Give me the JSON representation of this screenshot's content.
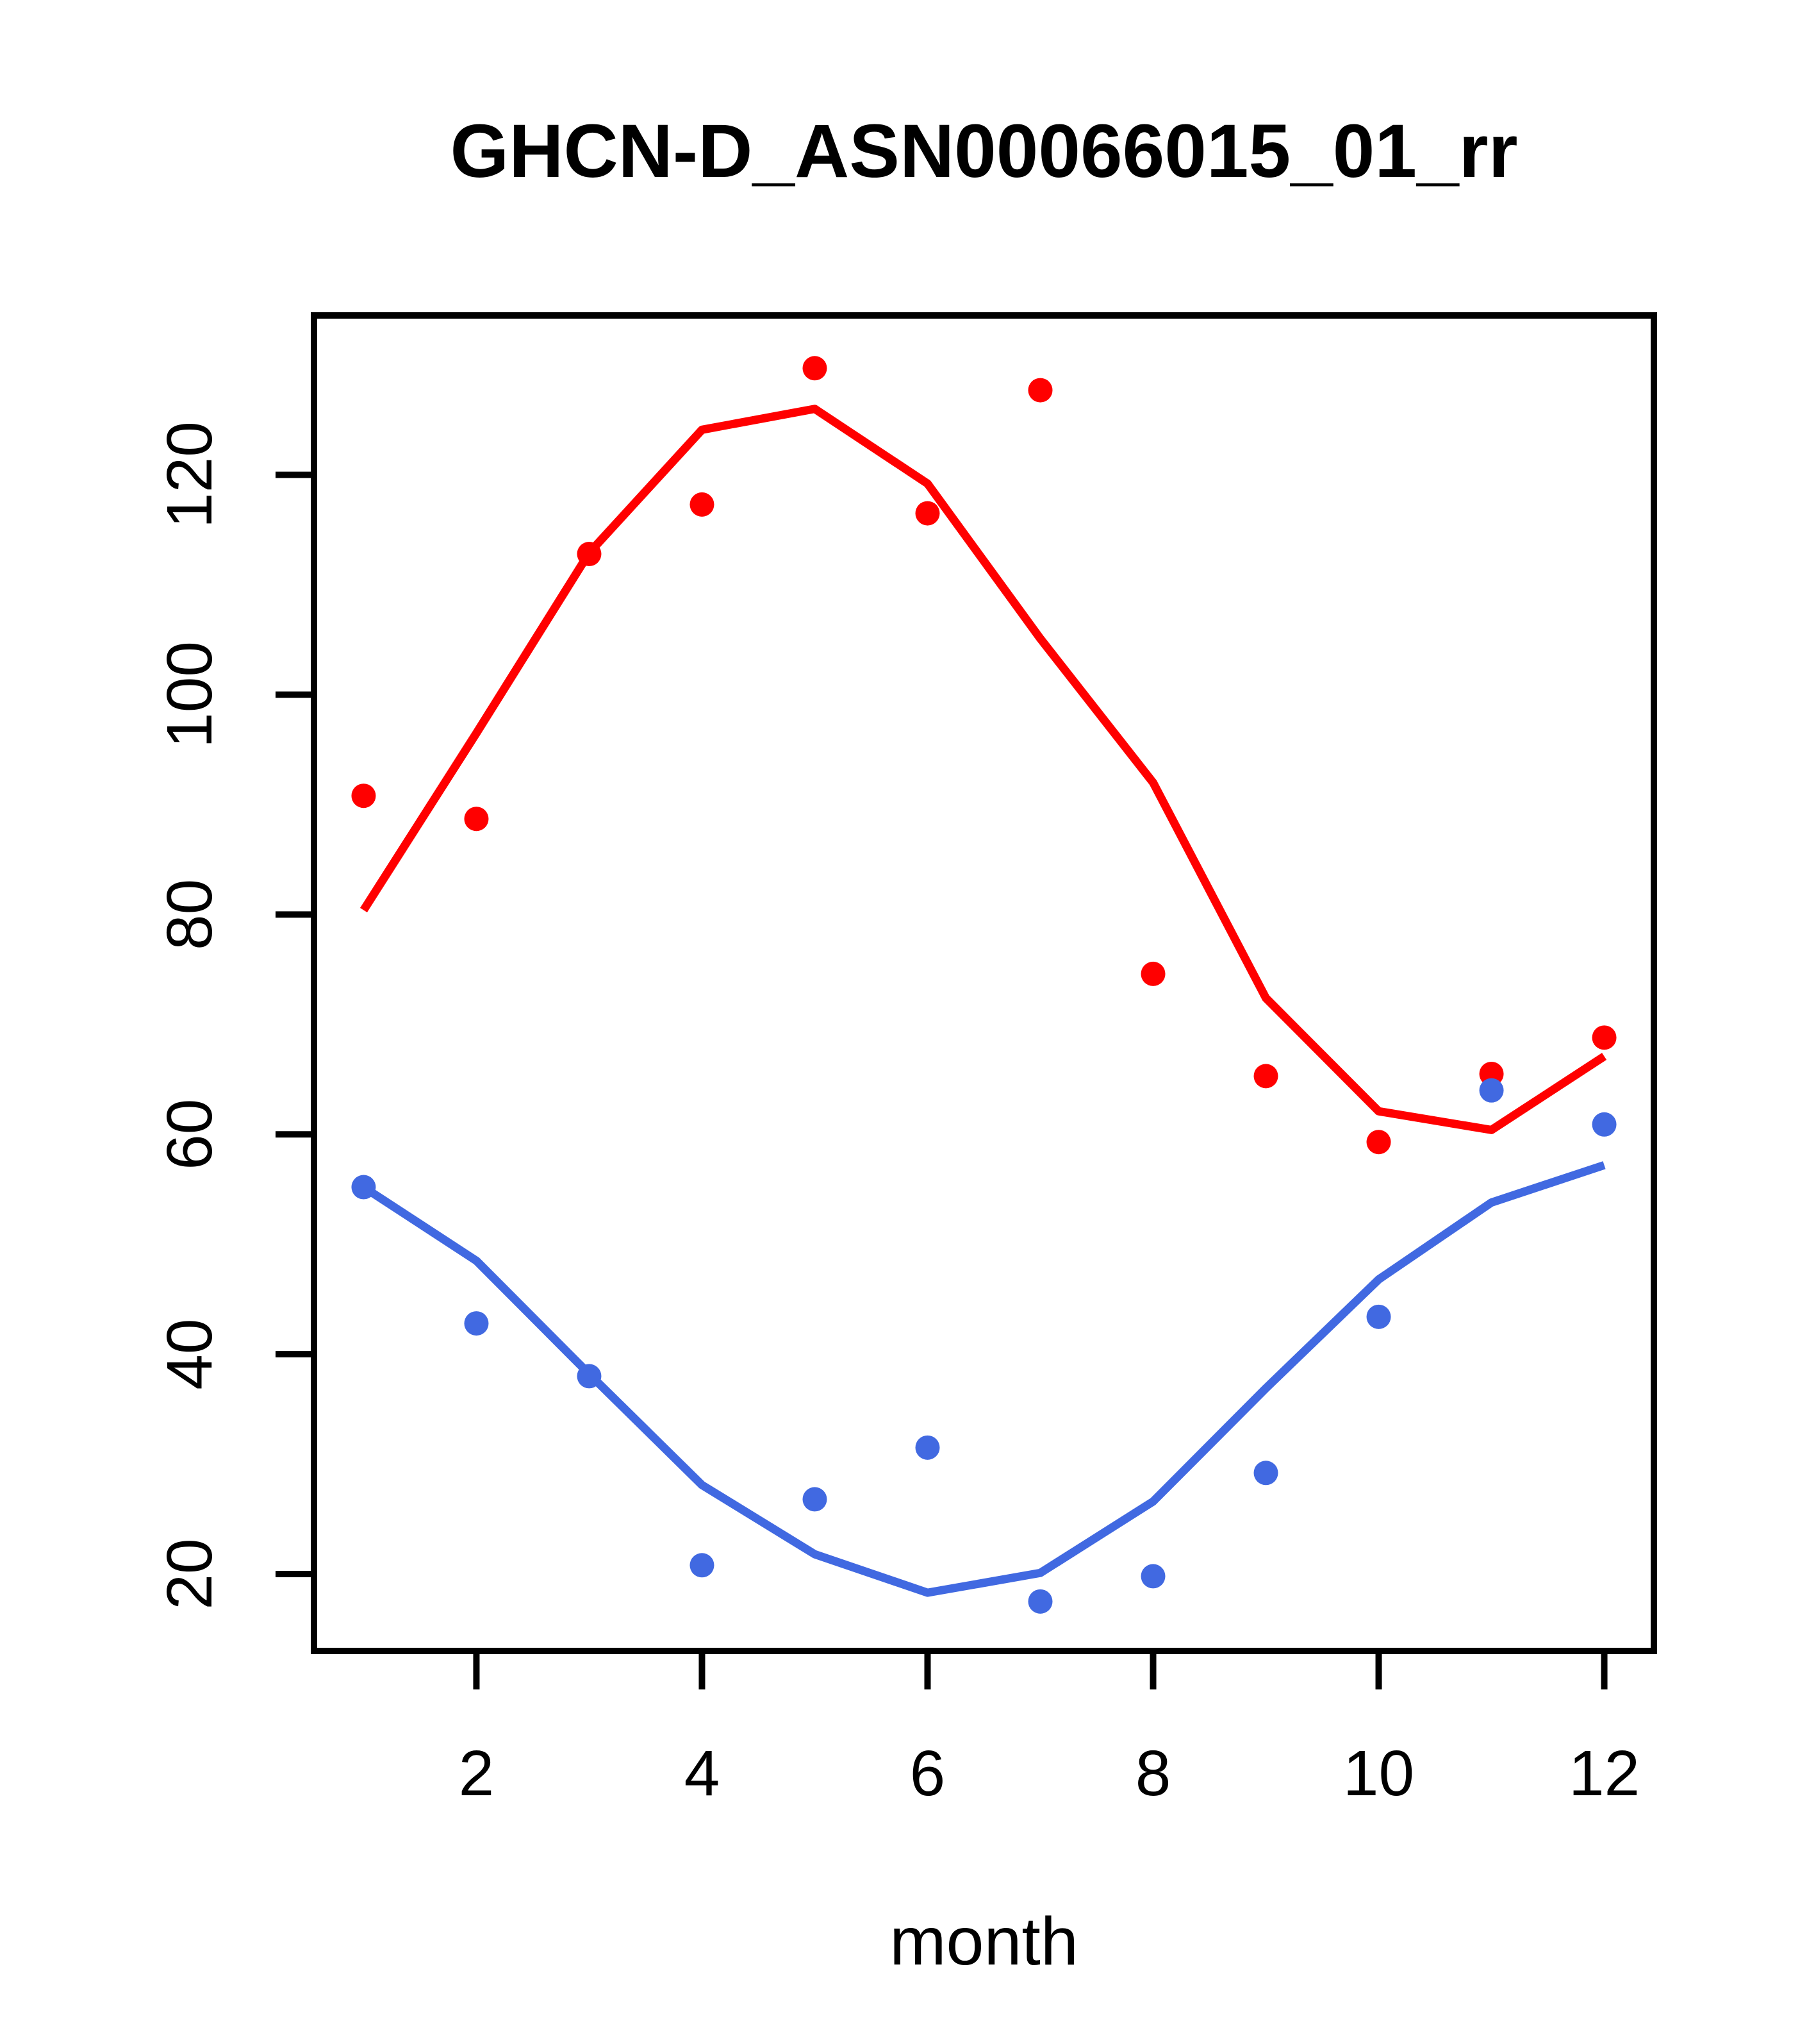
{
  "page": {
    "background": "#ffffff"
  },
  "chart_data": {
    "type": "scatter",
    "title": "GHCN-D_ASN00066015_01_rr",
    "xlabel": "month",
    "ylabel": "",
    "x": [
      1,
      2,
      3,
      4,
      5,
      6,
      7,
      8,
      9,
      10,
      11,
      12
    ],
    "series": [
      {
        "name": "red-observations",
        "style": "points",
        "color": "#FF0000",
        "values": [
          90.8,
          88.7,
          112.8,
          117.3,
          129.7,
          116.5,
          127.7,
          74.6,
          65.3,
          59.3,
          65.5,
          68.8
        ]
      },
      {
        "name": "red-smooth-curve",
        "style": "line",
        "color": "#FF0000",
        "values": [
          80.4,
          96.5,
          112.9,
          124.1,
          126.0,
          119.2,
          105.1,
          92.0,
          72.4,
          62.1,
          60.4,
          67.1
        ]
      },
      {
        "name": "blue-observations",
        "style": "points",
        "color": "#4169E1",
        "values": [
          55.2,
          42.8,
          38.0,
          20.8,
          26.8,
          31.5,
          17.5,
          19.8,
          29.2,
          43.4,
          64.0,
          60.9
        ]
      },
      {
        "name": "blue-smooth-curve",
        "style": "line",
        "color": "#4169E1",
        "values": [
          55.2,
          48.5,
          38.2,
          28.1,
          21.8,
          18.3,
          20.1,
          26.6,
          36.9,
          46.8,
          53.8,
          57.2
        ]
      }
    ],
    "x_ticks": [
      2,
      4,
      6,
      8,
      10,
      12
    ],
    "y_ticks": [
      20,
      40,
      60,
      80,
      100,
      120
    ],
    "xlim": [
      0.56,
      12.44
    ],
    "ylim": [
      13.0,
      134.5
    ],
    "grid": false,
    "legend": "none",
    "axis_color": "#000000"
  }
}
